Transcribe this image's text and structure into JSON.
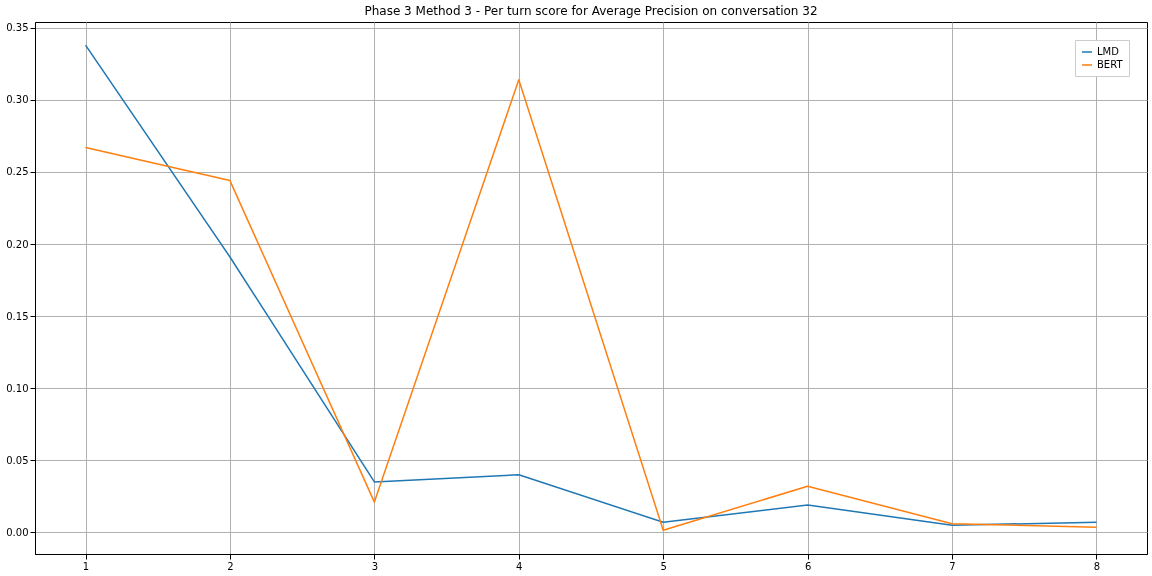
{
  "chart_data": {
    "type": "line",
    "title": "Phase 3 Method 3 - Per turn score for Average Precision on conversation 32",
    "x": [
      1,
      2,
      3,
      4,
      5,
      6,
      7,
      8
    ],
    "series": [
      {
        "name": "LMD",
        "color": "#1f77b4",
        "values": [
          0.338,
          0.191,
          0.035,
          0.04,
          0.007,
          0.019,
          0.005,
          0.007
        ]
      },
      {
        "name": "BERT",
        "color": "#ff7f0e",
        "values": [
          0.267,
          0.244,
          0.021,
          0.314,
          0.0015,
          0.032,
          0.006,
          0.0035
        ]
      }
    ],
    "xlim": [
      0.65,
      8.35
    ],
    "xticks": [
      1,
      2,
      3,
      4,
      5,
      6,
      7,
      8
    ],
    "ylim": [
      -0.015,
      0.354
    ],
    "yticks": [
      {
        "value": 0,
        "label": "0.00"
      },
      {
        "value": 0.05,
        "label": "0.05"
      },
      {
        "value": 0.1,
        "label": "0.10"
      },
      {
        "value": 0.15,
        "label": "0.15"
      },
      {
        "value": 0.2,
        "label": "0.20"
      },
      {
        "value": 0.25,
        "label": "0.25"
      },
      {
        "value": 0.3,
        "label": "0.30"
      },
      {
        "value": 0.35,
        "label": "0.35"
      }
    ],
    "grid": true,
    "legend": "top right",
    "marker": "none",
    "line_style": "solid"
  }
}
